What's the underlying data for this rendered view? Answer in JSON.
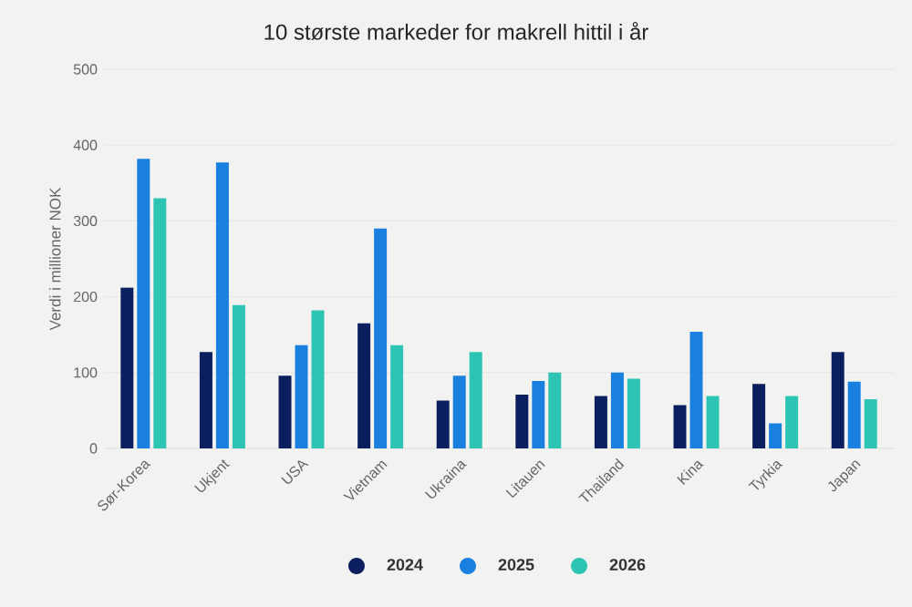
{
  "chart_data": {
    "type": "bar",
    "title": "10 største markeder for makrell hittil i år",
    "ylabel": "Verdi i millioner NOK",
    "categories": [
      "Sør-Korea",
      "Ukjent",
      "USA",
      "Vietnam",
      "Ukraina",
      "Litauen",
      "Thailand",
      "Kina",
      "Tyrkia",
      "Japan"
    ],
    "series": [
      {
        "name": "2024",
        "color": "#0b1f5e",
        "values": [
          212,
          127,
          96,
          165,
          63,
          71,
          69,
          57,
          85,
          127
        ]
      },
      {
        "name": "2025",
        "color": "#1a80e0",
        "values": [
          382,
          377,
          136,
          290,
          96,
          89,
          100,
          154,
          33,
          88
        ]
      },
      {
        "name": "2026",
        "color": "#2ec4b4",
        "values": [
          330,
          189,
          182,
          136,
          127,
          100,
          92,
          69,
          69,
          65
        ]
      }
    ],
    "ylim": [
      0,
      500
    ],
    "yticks": [
      0,
      100,
      200,
      300,
      400,
      500
    ],
    "grid": "y",
    "legend": "bottom"
  }
}
